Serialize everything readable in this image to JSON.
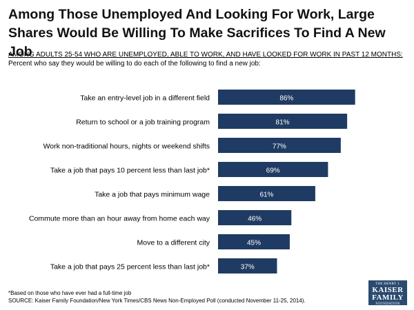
{
  "chart_data": {
    "type": "bar",
    "orientation": "horizontal",
    "title": "Among Those Unemployed And Looking For Work, Large Shares Would Be Willing To Make Sacrifices To Find A New Job",
    "subtitle_underlined": "AMONG ADULTS 25-54 WHO ARE UNEMPLOYED, ABLE TO WORK, AND HAVE LOOKED FOR WORK IN PAST 12 MONTHS:",
    "subtitle": "Percent who say they would be willing to do each of the following to find a new job:",
    "categories": [
      "Take an entry-level job in a different field",
      "Return to school or a job training program",
      "Work non-traditional hours, nights or weekend shifts",
      "Take a job that pays 10 percent less than last job*",
      "Take a job that pays minimum wage",
      "Commute more than an hour away from home each way",
      "Move to a different city",
      "Take a job that pays 25 percent less than last job*"
    ],
    "values": [
      86,
      81,
      77,
      69,
      61,
      46,
      45,
      37
    ],
    "value_labels": [
      "86%",
      "81%",
      "77%",
      "69%",
      "61%",
      "46%",
      "45%",
      "37%"
    ],
    "unit": "%",
    "xlim": [
      0,
      100
    ],
    "grid": false,
    "bar_color": "#1f3b63"
  },
  "footnote": "*Based on those who have ever had a full-time job",
  "source": "SOURCE: Kaiser Family Foundation/New York Times/CBS News Non-Employed Poll (conducted November 11-25, 2014).",
  "logo": {
    "line1": "THE HENRY J.",
    "line2": "KAISER",
    "line3": "FAMILY",
    "line4": "FOUNDATION"
  }
}
